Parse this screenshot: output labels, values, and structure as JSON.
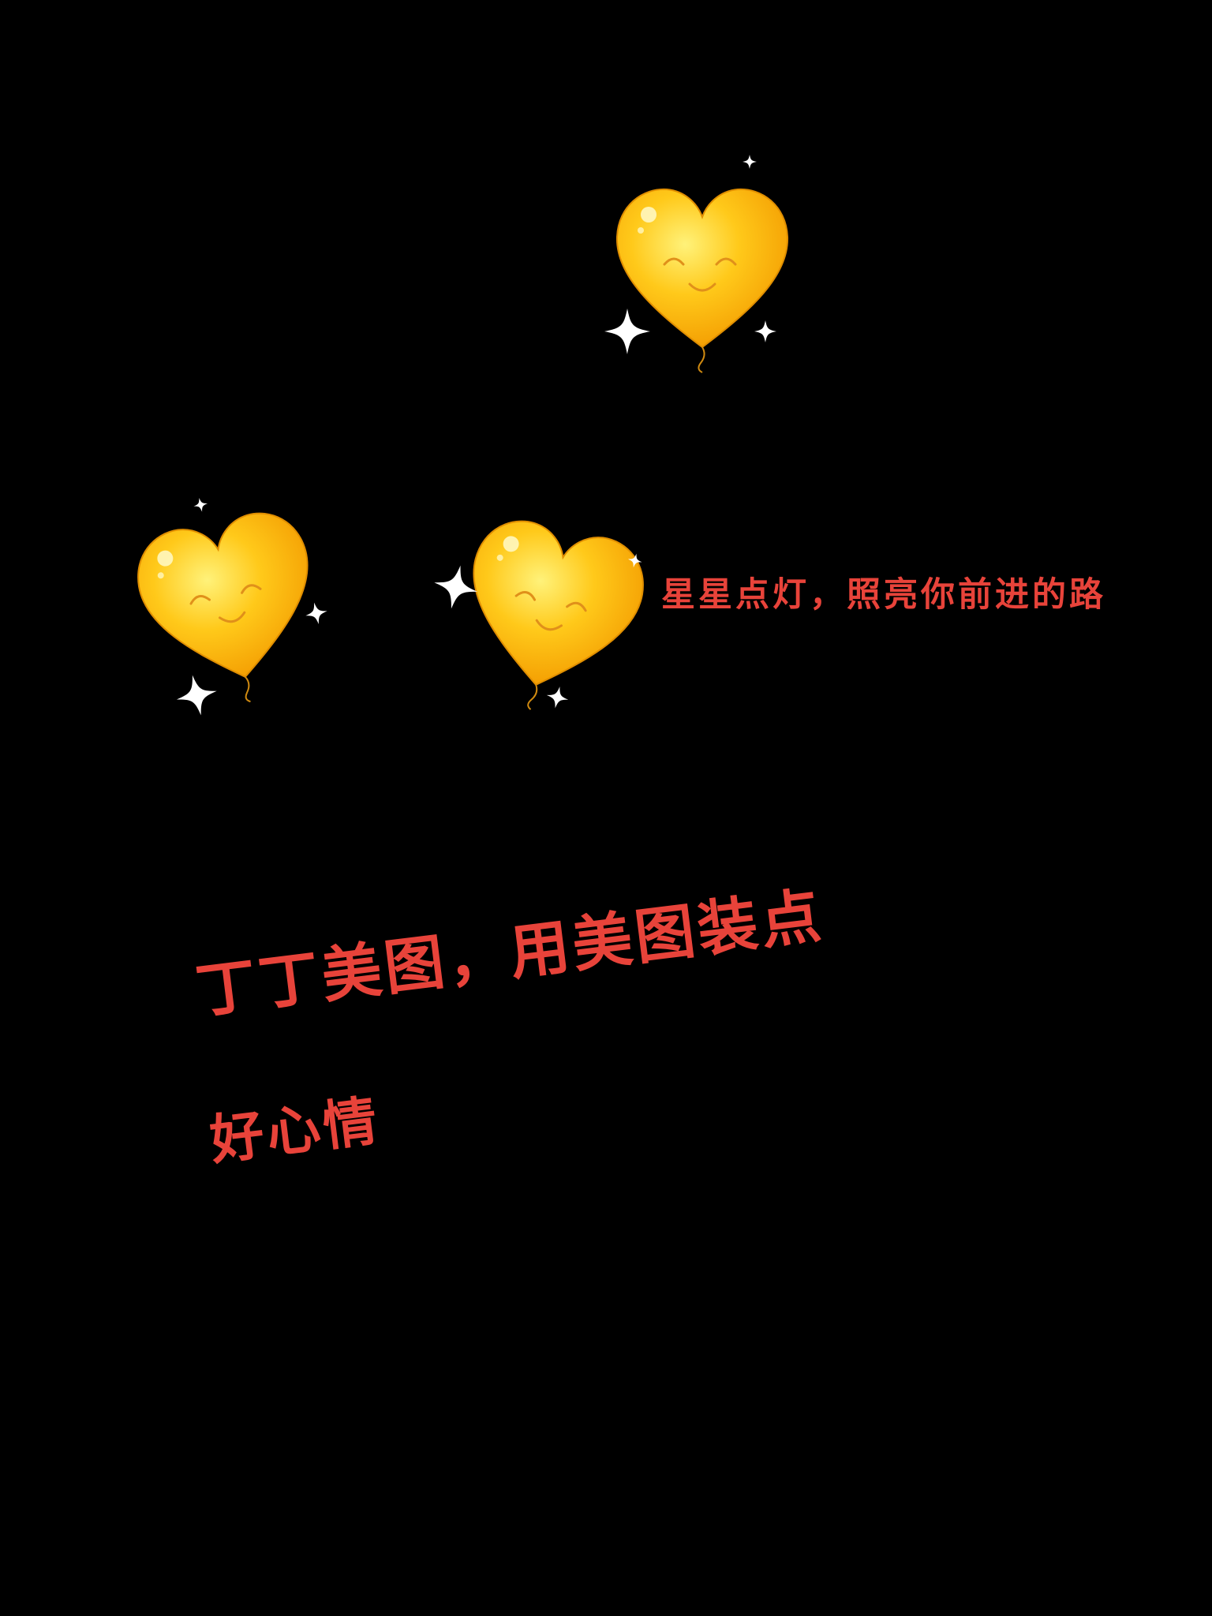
{
  "caption": "星星点灯，照亮你前进的路",
  "slogan": {
    "line1": "丁丁美图，用美图装点",
    "line2": "好心情"
  },
  "icons": {
    "heart": "smiling-heart-balloon-icon",
    "sparkle": "sparkle-icon"
  },
  "colors": {
    "background": "#000000",
    "text": "#e8433a",
    "heart": "#ffc20e",
    "sparkle": "#ffffff"
  }
}
